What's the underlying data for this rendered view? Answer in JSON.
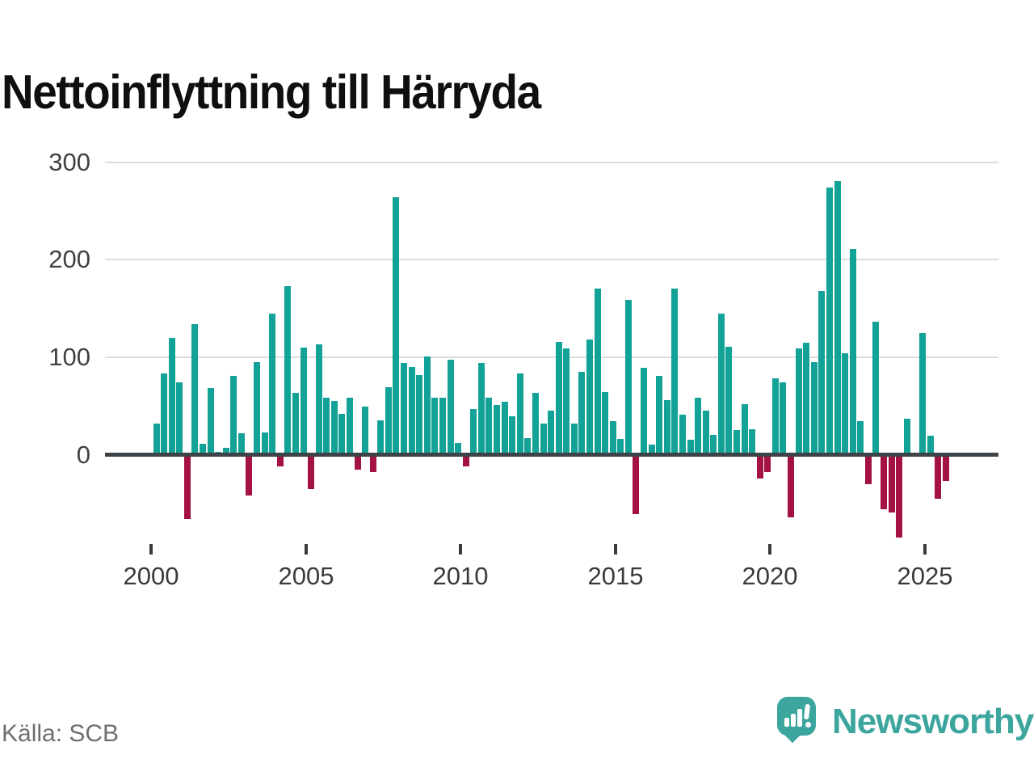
{
  "title": "Nettoinflyttning till Härryda",
  "source": "Källa: SCB",
  "branding": {
    "logo_text": "Newsworthy",
    "logo_icon": "speech-bubble-bar-chart-exclamation"
  },
  "colors": {
    "positive_bar": "#13a297",
    "negative_bar": "#a31145",
    "axis_line": "#3d4347",
    "gridline": "#dcdcdc",
    "tick_label": "#3a3a3a",
    "y_label": "#414141",
    "title_text": "#0f0f0f",
    "source_text": "#6f6f6f",
    "brand_teal": "#3ca69e"
  },
  "chart_data": {
    "type": "bar",
    "title": "Nettoinflyttning till Härryda",
    "frequency": "quarterly",
    "series_start": "2000-Q1",
    "x_ticks": [
      2000,
      2005,
      2010,
      2015,
      2020,
      2025
    ],
    "y_ticks": [
      0,
      100,
      200,
      300
    ],
    "ylim": [
      -100,
      320
    ],
    "grid": "horizontal-only",
    "legend": "none",
    "values_by_year": [
      {
        "year": 2000,
        "quarters": [
          30,
          81,
          118,
          72
        ]
      },
      {
        "year": 2001,
        "quarters": [
          -64,
          132,
          9,
          66
        ]
      },
      {
        "year": 2002,
        "quarters": [
          1,
          5,
          79,
          20
        ]
      },
      {
        "year": 2003,
        "quarters": [
          -40,
          93,
          21,
          143
        ]
      },
      {
        "year": 2004,
        "quarters": [
          -10,
          171,
          61,
          108
        ]
      },
      {
        "year": 2005,
        "quarters": [
          -33,
          111,
          56,
          53
        ]
      },
      {
        "year": 2006,
        "quarters": [
          40,
          56,
          -13,
          47
        ]
      },
      {
        "year": 2007,
        "quarters": [
          -16,
          33,
          67,
          262
        ]
      },
      {
        "year": 2008,
        "quarters": [
          92,
          88,
          80,
          99
        ]
      },
      {
        "year": 2009,
        "quarters": [
          56,
          56,
          95,
          10
        ]
      },
      {
        "year": 2010,
        "quarters": [
          -10,
          45,
          92,
          56
        ]
      },
      {
        "year": 2011,
        "quarters": [
          49,
          52,
          37,
          81
        ]
      },
      {
        "year": 2012,
        "quarters": [
          15,
          61,
          30,
          43
        ]
      },
      {
        "year": 2013,
        "quarters": [
          114,
          107,
          30,
          83
        ]
      },
      {
        "year": 2014,
        "quarters": [
          116,
          168,
          62,
          32
        ]
      },
      {
        "year": 2015,
        "quarters": [
          14,
          157,
          -59,
          87
        ]
      },
      {
        "year": 2016,
        "quarters": [
          8,
          79,
          54,
          168
        ]
      },
      {
        "year": 2017,
        "quarters": [
          39,
          13,
          56,
          43
        ]
      },
      {
        "year": 2018,
        "quarters": [
          18,
          143,
          109,
          23
        ]
      },
      {
        "year": 2019,
        "quarters": [
          50,
          24,
          -22,
          -16
        ]
      },
      {
        "year": 2020,
        "quarters": [
          76,
          72,
          -62,
          107
        ]
      },
      {
        "year": 2021,
        "quarters": [
          113,
          93,
          166,
          272
        ]
      },
      {
        "year": 2022,
        "quarters": [
          279,
          102,
          209,
          32
        ]
      },
      {
        "year": 2023,
        "quarters": [
          -28,
          134,
          -54,
          -57
        ]
      },
      {
        "year": 2024,
        "quarters": [
          -83,
          35,
          0,
          123
        ]
      },
      {
        "year": 2025,
        "quarters": [
          17,
          -43,
          -25
        ]
      }
    ]
  }
}
